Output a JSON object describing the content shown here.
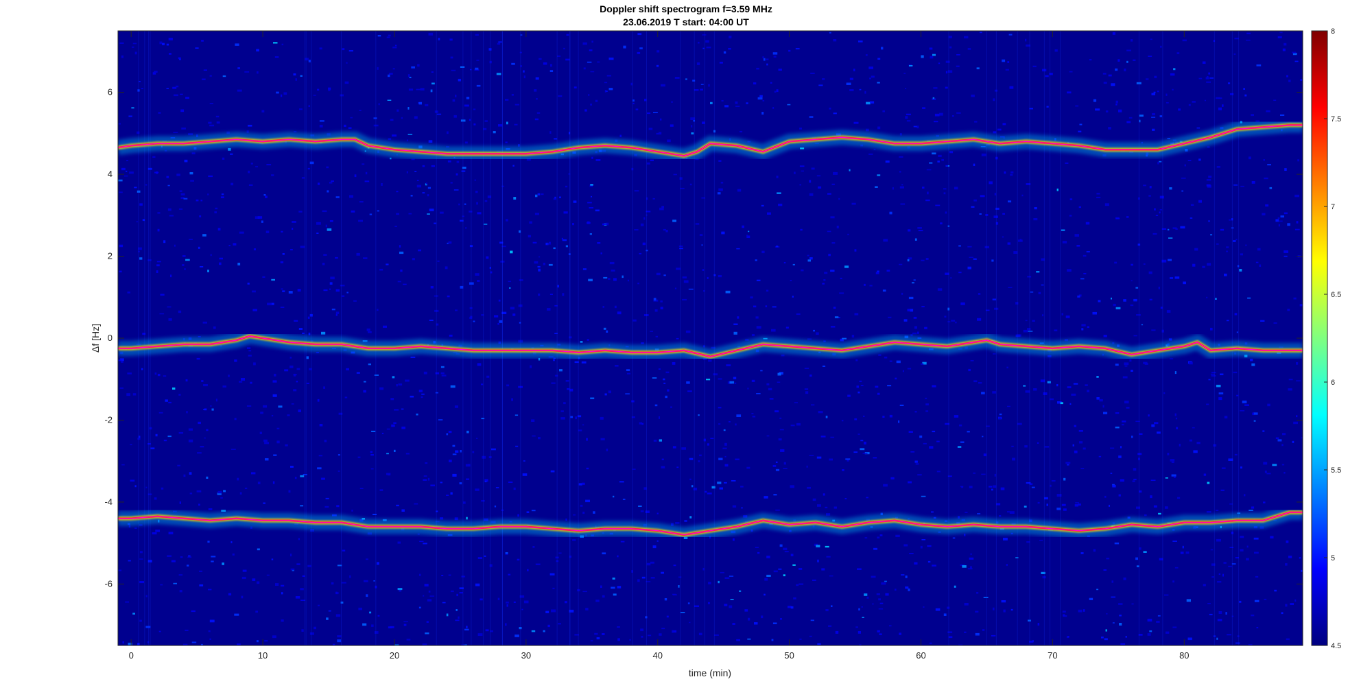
{
  "chart_data": {
    "type": "heatmap",
    "title": "Doppler shift spectrogram f=3.59 MHz",
    "subtitle": "23.06.2019    T start: 04:00 UT",
    "xlabel": "time (min)",
    "ylabel": "Δf [Hz]",
    "xlim": [
      -1,
      89
    ],
    "ylim": [
      -7.5,
      7.5
    ],
    "xticks": [
      0,
      10,
      20,
      30,
      40,
      50,
      60,
      70,
      80
    ],
    "yticks": [
      -6,
      -4,
      -2,
      0,
      2,
      4,
      6
    ],
    "colorbar": {
      "min": 4.5,
      "max": 8,
      "ticks": [
        4.5,
        5,
        5.5,
        6,
        6.5,
        7,
        7.5,
        8
      ],
      "colormap": "jet"
    },
    "series": [
      {
        "x": [
          -1,
          0,
          2,
          4,
          6,
          8,
          10,
          12,
          14,
          16,
          17,
          18,
          20,
          22,
          24,
          26,
          28,
          30,
          32,
          34,
          36,
          38,
          40,
          42,
          43,
          44,
          46,
          48,
          50,
          52,
          54,
          56,
          58,
          60,
          62,
          64,
          66,
          68,
          70,
          72,
          74,
          76,
          78,
          80,
          82,
          84,
          86,
          88,
          89
        ],
        "y": [
          4.65,
          4.7,
          4.75,
          4.75,
          4.8,
          4.85,
          4.8,
          4.85,
          4.8,
          4.85,
          4.85,
          4.7,
          4.6,
          4.55,
          4.5,
          4.5,
          4.5,
          4.5,
          4.55,
          4.65,
          4.7,
          4.65,
          4.55,
          4.45,
          4.55,
          4.75,
          4.7,
          4.55,
          4.8,
          4.85,
          4.9,
          4.85,
          4.75,
          4.75,
          4.8,
          4.85,
          4.75,
          4.8,
          4.75,
          4.7,
          4.6,
          4.6,
          4.6,
          4.75,
          4.9,
          5.1,
          5.15,
          5.2,
          5.2
        ]
      },
      {
        "x": [
          -1,
          0,
          2,
          4,
          6,
          8,
          9,
          10,
          12,
          14,
          16,
          18,
          20,
          22,
          24,
          26,
          28,
          30,
          32,
          34,
          36,
          38,
          40,
          42,
          44,
          46,
          48,
          50,
          52,
          54,
          56,
          58,
          60,
          62,
          64,
          65,
          66,
          68,
          70,
          72,
          74,
          76,
          78,
          80,
          81,
          82,
          84,
          86,
          88,
          89
        ],
        "y": [
          -0.25,
          -0.25,
          -0.2,
          -0.15,
          -0.15,
          -0.05,
          0.05,
          0.0,
          -0.1,
          -0.15,
          -0.15,
          -0.25,
          -0.25,
          -0.2,
          -0.25,
          -0.3,
          -0.3,
          -0.3,
          -0.3,
          -0.35,
          -0.3,
          -0.35,
          -0.35,
          -0.3,
          -0.45,
          -0.3,
          -0.15,
          -0.2,
          -0.25,
          -0.3,
          -0.2,
          -0.1,
          -0.15,
          -0.2,
          -0.1,
          -0.05,
          -0.15,
          -0.2,
          -0.25,
          -0.2,
          -0.25,
          -0.4,
          -0.3,
          -0.2,
          -0.1,
          -0.3,
          -0.25,
          -0.3,
          -0.3,
          -0.3
        ]
      },
      {
        "x": [
          -1,
          0,
          2,
          4,
          6,
          8,
          10,
          12,
          14,
          16,
          18,
          20,
          22,
          24,
          26,
          28,
          30,
          32,
          34,
          36,
          38,
          40,
          42,
          44,
          46,
          48,
          50,
          52,
          54,
          56,
          58,
          60,
          62,
          64,
          66,
          68,
          70,
          72,
          74,
          76,
          78,
          80,
          82,
          84,
          86,
          88,
          89
        ],
        "y": [
          -4.4,
          -4.4,
          -4.35,
          -4.4,
          -4.45,
          -4.4,
          -4.45,
          -4.45,
          -4.5,
          -4.5,
          -4.6,
          -4.6,
          -4.6,
          -4.65,
          -4.65,
          -4.6,
          -4.6,
          -4.65,
          -4.7,
          -4.65,
          -4.65,
          -4.7,
          -4.8,
          -4.7,
          -4.6,
          -4.45,
          -4.55,
          -4.5,
          -4.6,
          -4.5,
          -4.45,
          -4.55,
          -4.6,
          -4.55,
          -4.6,
          -4.6,
          -4.65,
          -4.7,
          -4.65,
          -4.55,
          -4.6,
          -4.5,
          -4.5,
          -4.45,
          -4.45,
          -4.25,
          -4.25
        ]
      }
    ]
  }
}
